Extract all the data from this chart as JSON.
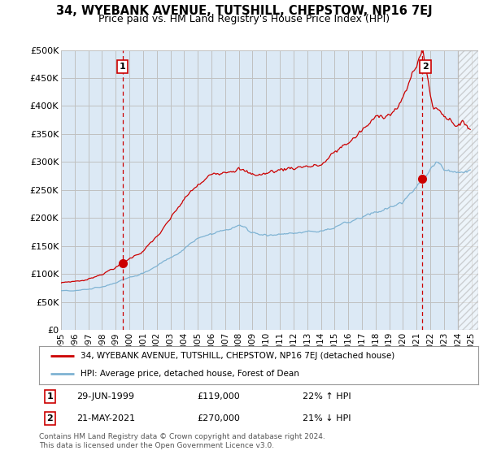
{
  "title": "34, WYEBANK AVENUE, TUTSHILL, CHEPSTOW, NP16 7EJ",
  "subtitle": "Price paid vs. HM Land Registry's House Price Index (HPI)",
  "ylim": [
    0,
    500000
  ],
  "yticks": [
    0,
    50000,
    100000,
    150000,
    200000,
    250000,
    300000,
    350000,
    400000,
    450000,
    500000
  ],
  "ytick_labels": [
    "£0",
    "£50K",
    "£100K",
    "£150K",
    "£200K",
    "£250K",
    "£300K",
    "£350K",
    "£400K",
    "£450K",
    "£500K"
  ],
  "xtick_years": [
    1995,
    1996,
    1997,
    1998,
    1999,
    2000,
    2001,
    2002,
    2003,
    2004,
    2005,
    2006,
    2007,
    2008,
    2009,
    2010,
    2011,
    2012,
    2013,
    2014,
    2015,
    2016,
    2017,
    2018,
    2019,
    2020,
    2021,
    2022,
    2023,
    2024,
    2025
  ],
  "sale1_x": 1999.49,
  "sale1_y": 119000,
  "sale2_x": 2021.38,
  "sale2_y": 270000,
  "red_line_color": "#cc0000",
  "blue_line_color": "#7fb3d3",
  "vline_color": "#cc0000",
  "dot_color": "#cc0000",
  "chart_bg_color": "#dce9f5",
  "legend_label1": "34, WYEBANK AVENUE, TUTSHILL, CHEPSTOW, NP16 7EJ (detached house)",
  "legend_label2": "HPI: Average price, detached house, Forest of Dean",
  "note1_date": "29-JUN-1999",
  "note1_price": "£119,000",
  "note1_hpi": "22% ↑ HPI",
  "note2_date": "21-MAY-2021",
  "note2_price": "£270,000",
  "note2_hpi": "21% ↓ HPI",
  "footer": "Contains HM Land Registry data © Crown copyright and database right 2024.\nThis data is licensed under the Open Government Licence v3.0.",
  "background_color": "#ffffff",
  "grid_color": "#c0c0c0",
  "title_fontsize": 10.5,
  "subtitle_fontsize": 9
}
